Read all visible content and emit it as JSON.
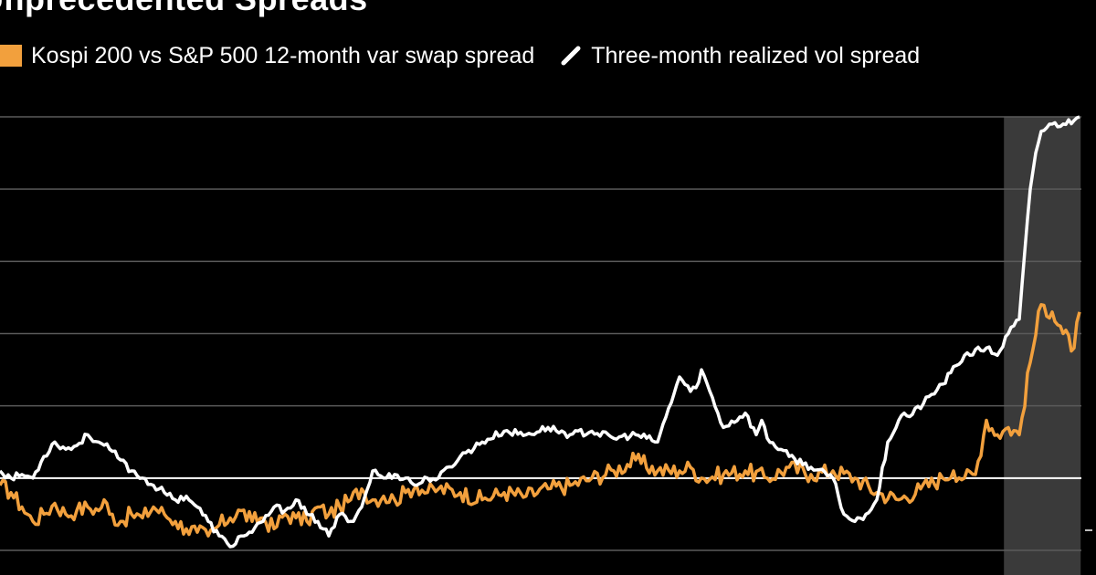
{
  "chart_data": {
    "type": "line",
    "title": "Unprecedented Spreads",
    "legend_placement": "top-left",
    "grid": true,
    "ylim": [
      -1,
      5
    ],
    "y_gridlines": [
      -1,
      0,
      1,
      2,
      3,
      4,
      5
    ],
    "shaded_region": {
      "x_start": 0.916,
      "x_end": 0.986,
      "color": "#3a3a3a"
    },
    "series": [
      {
        "name": "Kospi 200 vs S&P 500 12-month var swap spread",
        "color": "#f2a03d",
        "x": [
          0,
          0.01,
          0.02,
          0.03,
          0.04,
          0.05,
          0.06,
          0.07,
          0.08,
          0.09,
          0.095,
          0.1,
          0.11,
          0.12,
          0.13,
          0.14,
          0.15,
          0.16,
          0.17,
          0.18,
          0.19,
          0.2,
          0.21,
          0.22,
          0.23,
          0.24,
          0.25,
          0.26,
          0.27,
          0.28,
          0.29,
          0.3,
          0.31,
          0.32,
          0.33,
          0.34,
          0.35,
          0.36,
          0.37,
          0.38,
          0.39,
          0.4,
          0.42,
          0.44,
          0.46,
          0.48,
          0.5,
          0.52,
          0.54,
          0.56,
          0.58,
          0.6,
          0.62,
          0.63,
          0.64,
          0.66,
          0.68,
          0.7,
          0.72,
          0.74,
          0.76,
          0.78,
          0.8,
          0.82,
          0.84,
          0.86,
          0.87,
          0.88,
          0.89,
          0.9,
          0.91,
          0.92,
          0.93,
          0.94,
          0.95,
          0.96,
          0.97,
          0.98,
          0.985
        ],
        "values": [
          -0.1,
          -0.2,
          -0.4,
          -0.6,
          -0.5,
          -0.35,
          -0.5,
          -0.45,
          -0.4,
          -0.45,
          -0.3,
          -0.5,
          -0.6,
          -0.5,
          -0.55,
          -0.4,
          -0.5,
          -0.6,
          -0.7,
          -0.75,
          -0.8,
          -0.65,
          -0.55,
          -0.45,
          -0.6,
          -0.55,
          -0.7,
          -0.5,
          -0.55,
          -0.6,
          -0.4,
          -0.5,
          -0.4,
          -0.3,
          -0.15,
          -0.3,
          -0.25,
          -0.3,
          -0.2,
          -0.1,
          -0.2,
          -0.15,
          -0.2,
          -0.3,
          -0.2,
          -0.25,
          -0.15,
          -0.1,
          0.0,
          0.1,
          0.25,
          0.1,
          0.1,
          0.15,
          0.0,
          0.05,
          0.1,
          0.0,
          0.15,
          0.05,
          0.1,
          0.0,
          -0.2,
          -0.3,
          -0.15,
          0.0,
          0.1,
          0.0,
          0.05,
          0.8,
          0.6,
          0.7,
          0.6,
          1.6,
          2.4,
          2.3,
          2.0,
          1.8,
          2.3
        ]
      },
      {
        "name": "Three-month realized vol spread",
        "color": "#ffffff",
        "x": [
          0,
          0.01,
          0.02,
          0.03,
          0.04,
          0.05,
          0.06,
          0.07,
          0.08,
          0.09,
          0.1,
          0.11,
          0.12,
          0.13,
          0.14,
          0.15,
          0.16,
          0.17,
          0.18,
          0.19,
          0.2,
          0.21,
          0.22,
          0.23,
          0.24,
          0.25,
          0.26,
          0.27,
          0.28,
          0.29,
          0.3,
          0.31,
          0.32,
          0.33,
          0.34,
          0.35,
          0.36,
          0.37,
          0.38,
          0.39,
          0.4,
          0.42,
          0.44,
          0.46,
          0.48,
          0.5,
          0.52,
          0.54,
          0.56,
          0.58,
          0.6,
          0.62,
          0.63,
          0.635,
          0.64,
          0.66,
          0.68,
          0.69,
          0.695,
          0.7,
          0.72,
          0.74,
          0.76,
          0.77,
          0.78,
          0.79,
          0.8,
          0.81,
          0.82,
          0.825,
          0.83,
          0.86,
          0.88,
          0.9,
          0.91,
          0.92,
          0.93,
          0.94,
          0.945,
          0.95,
          0.96,
          0.97,
          0.98,
          0.985
        ],
        "values": [
          0.1,
          0.0,
          0.05,
          0.0,
          0.3,
          0.5,
          0.4,
          0.45,
          0.6,
          0.5,
          0.4,
          0.25,
          0.1,
          0.0,
          -0.1,
          -0.2,
          -0.3,
          -0.25,
          -0.4,
          -0.6,
          -0.8,
          -0.95,
          -0.8,
          -0.75,
          -0.6,
          -0.4,
          -0.45,
          -0.3,
          -0.5,
          -0.6,
          -0.8,
          -0.5,
          -0.6,
          -0.4,
          0.1,
          0.0,
          0.05,
          0.0,
          -0.1,
          0.0,
          0.0,
          0.3,
          0.5,
          0.65,
          0.6,
          0.7,
          0.6,
          0.65,
          0.55,
          0.6,
          0.5,
          1.4,
          1.2,
          1.25,
          1.5,
          0.7,
          0.9,
          0.6,
          0.8,
          0.55,
          0.3,
          0.15,
          0.0,
          -0.5,
          -0.6,
          -0.5,
          -0.3,
          0.5,
          0.8,
          0.9,
          0.85,
          1.3,
          1.7,
          1.8,
          1.7,
          2.0,
          2.2,
          4.0,
          4.5,
          4.8,
          4.9,
          4.9,
          4.95,
          5.0
        ]
      }
    ]
  }
}
